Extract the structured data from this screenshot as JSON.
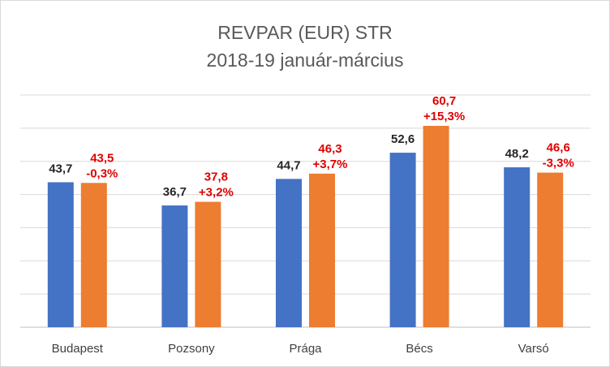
{
  "chart_data": {
    "type": "bar",
    "title": "REVPAR (EUR) STR",
    "subtitle": "2018-19 január-március",
    "categories": [
      "Budapest",
      "Pozsony",
      "Prága",
      "Bécs",
      "Varsó"
    ],
    "series": [
      {
        "values": [
          43.7,
          36.7,
          44.7,
          52.6,
          48.2
        ],
        "color": "#4472c4",
        "value_labels": [
          "43,7",
          "36,7",
          "44,7",
          "52,6",
          "48,2"
        ],
        "label_color": "#262626"
      },
      {
        "values": [
          43.5,
          37.8,
          46.3,
          60.7,
          46.6
        ],
        "color": "#ed7d31",
        "value_labels": [
          "43,5",
          "37,8",
          "46,3",
          "60,7",
          "46,6"
        ],
        "label_color": "#e00000"
      }
    ],
    "change_labels": [
      "-0,3%",
      "+3,2%",
      "+3,7%",
      "+15,3%",
      "-3,3%"
    ],
    "ylim": [
      0,
      70
    ],
    "grid": true,
    "gridline_color": "#d9d9d9"
  }
}
